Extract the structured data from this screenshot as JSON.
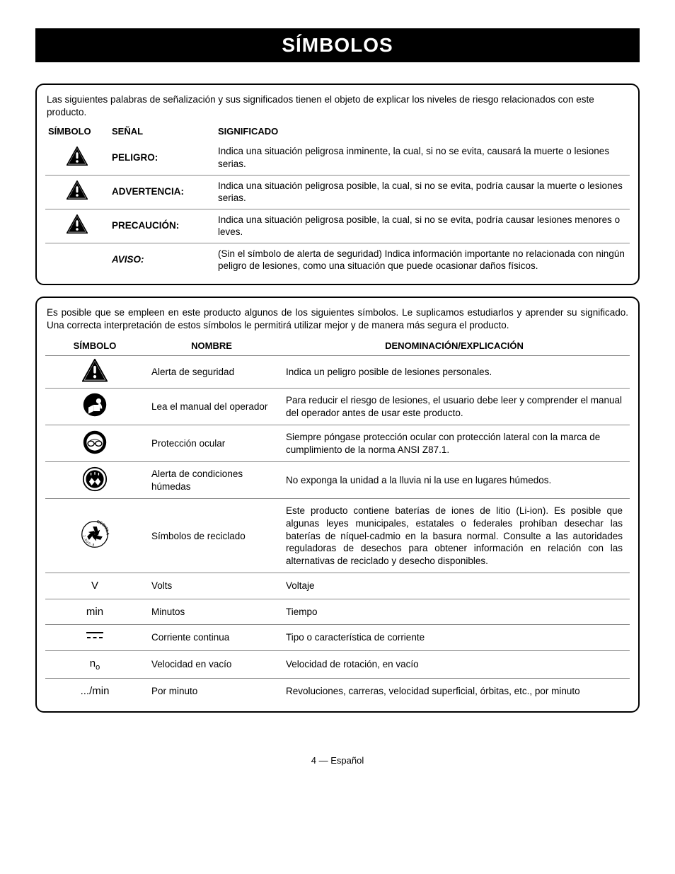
{
  "colors": {
    "black": "#000000",
    "white": "#ffffff",
    "grid": "#888888"
  },
  "page": {
    "title": "SÍMBOLOS",
    "footer": "4 — Español"
  },
  "signalPanel": {
    "intro": "Las siguientes palabras de señalización y sus significados tienen el objeto de explicar los niveles de riesgo relacionados con este producto.",
    "headers": {
      "symbol": "SÍMBOLO",
      "signal": "SEÑAL",
      "meaning": "SIGNIFICADO"
    },
    "rows": [
      {
        "icon": "alert",
        "signal": "PELIGRO:",
        "italic": false,
        "meaning": "Indica una situación peligrosa inminente, la cual, si no se evita, causará la muerte o lesiones serias."
      },
      {
        "icon": "alert",
        "signal": "ADVERTENCIA:",
        "italic": false,
        "meaning": "Indica una situación peligrosa posible, la cual, si no se evita, podría causar la muerte o lesiones serias."
      },
      {
        "icon": "alert",
        "signal": "PRECAUCIÓN:",
        "italic": false,
        "meaning": "Indica una situación peligrosa posible, la cual, si no se evita, podría causar lesiones menores o leves."
      },
      {
        "icon": "",
        "signal": "AVISO:",
        "italic": true,
        "meaning": "(Sin el símbolo de alerta de seguridad) Indica información importante no relacionada con ningún peligro de lesiones, como una situación que puede ocasionar daños físicos."
      }
    ]
  },
  "symbolPanel": {
    "intro": "Es posible que se empleen en este producto algunos de los siguientes símbolos. Le suplicamos estudiarlos y aprender su significado. Una correcta interpretación de estos símbolos le permitirá utilizar mejor y de manera más segura el producto.",
    "headers": {
      "symbol": "SÍMBOLO",
      "name": "NOMBRE",
      "desc": "DENOMINACIÓN/EXPLICACIÓN"
    },
    "rows": [
      {
        "icon": "alert",
        "name": "Alerta de seguridad",
        "desc": "Indica un peligro posible de lesiones personales.",
        "justify": false
      },
      {
        "icon": "manual",
        "name": "Lea el manual del operador",
        "desc": "Para reducir el riesgo de lesiones, el usuario debe leer y comprender el manual del operador antes de usar este producto.",
        "justify": false
      },
      {
        "icon": "eye",
        "name": "Protección ocular",
        "desc": "Siempre póngase protección ocular con protección lateral con la marca de cumplimiento de la norma ANSI Z87.1.",
        "justify": false
      },
      {
        "icon": "wet",
        "name": "Alerta  de  condiciones húmedas",
        "desc": "No exponga la unidad a la lluvia ni la use en lugares húmedos.",
        "justify": false
      },
      {
        "icon": "recycle",
        "name": "Símbolos de reciclado",
        "desc": "Este producto contiene baterías de iones de litio (Li-ion). Es posible que algunas leyes municipales, estatales o federales prohíban desechar las baterías de níquel-cadmio en la basura normal. Consulte a las autoridades reguladoras de desechos para obtener información en relación con las alternativas de reciclado y desecho disponibles.",
        "justify": true
      },
      {
        "icon": "text",
        "text": "V",
        "name": "Volts",
        "desc": "Voltaje",
        "justify": false
      },
      {
        "icon": "text",
        "text": "min",
        "name": "Minutos",
        "desc": "Tiempo",
        "justify": false
      },
      {
        "icon": "dc",
        "name": "Corriente continua",
        "desc": "Tipo o característica de corriente",
        "justify": false
      },
      {
        "icon": "n0",
        "name": "Velocidad en vacío",
        "desc": "Velocidad de rotación, en vacío",
        "justify": false
      },
      {
        "icon": "text",
        "text": ".../min",
        "name": "Por minuto",
        "desc": "Revoluciones,  carreras,  velocidad  superficial,  órbitas,  etc., por minuto",
        "justify": true
      }
    ]
  }
}
